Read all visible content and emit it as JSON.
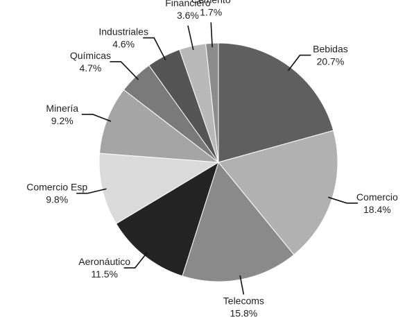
{
  "chart_data": {
    "type": "pie",
    "categories": [
      "Bebidas",
      "Comercio",
      "Telecoms",
      "Aeronáutico",
      "Comercio Esp",
      "Minería",
      "Químicas",
      "Industriales",
      "Financiero",
      "Cemento"
    ],
    "values": [
      20.7,
      18.4,
      15.8,
      11.5,
      9.8,
      9.2,
      4.7,
      4.6,
      3.6,
      1.7
    ],
    "value_labels": [
      "20.7%",
      "18.4%",
      "15.8%",
      "11.5%",
      "9.8%",
      "9.2%",
      "4.7%",
      "4.6%",
      "3.6%",
      "1.7%"
    ],
    "colors": [
      "#5f5f5f",
      "#b1b1b1",
      "#8a8a8a",
      "#242424",
      "#dadada",
      "#a5a5a5",
      "#7a7a7a",
      "#555555",
      "#b8b8b8",
      "#8c8c8c"
    ]
  }
}
